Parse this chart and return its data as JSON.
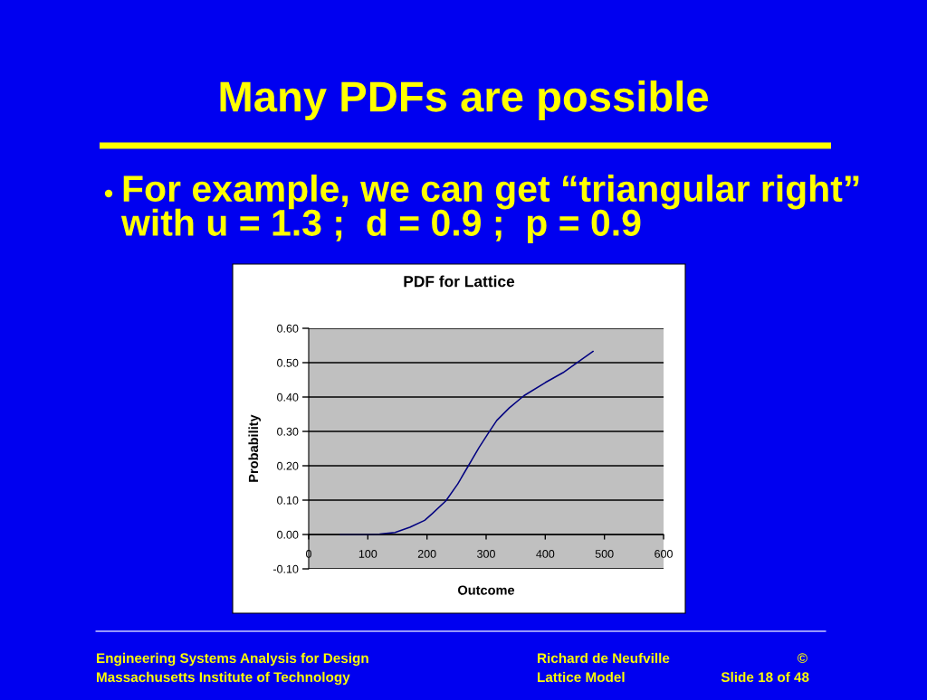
{
  "chart_data": [
    {
      "type": "other",
      "title": "Many PDFs are possible",
      "subtitle": "For example, we can get “triangular right”\nwith u = 1.3 ;  d = 0.9 ;  p = 0.9",
      "annotations": [
        "Engineering Systems Analysis for Design",
        "Massachusetts Institute of Technology",
        "Richard de Neufville",
        "©",
        "Lattice Model",
        "Slide 18 of 48"
      ]
    },
    {
      "type": "line",
      "title": "PDF for Lattice",
      "xlabel": "Outcome",
      "ylabel": "Probability",
      "x": [
        53,
        100,
        120,
        146,
        171,
        196,
        209,
        232,
        252,
        270,
        288,
        306,
        318,
        339,
        364,
        400,
        430,
        453,
        481
      ],
      "series": [
        {
          "color": "#000080",
          "values": [
            0,
            0,
            0.001,
            0.006,
            0.021,
            0.041,
            0.061,
            0.098,
            0.147,
            0.2,
            0.253,
            0.301,
            0.332,
            0.368,
            0.404,
            0.442,
            0.471,
            0.499,
            0.533
          ]
        }
      ],
      "xlim": [
        0,
        600
      ],
      "xticks": [
        0,
        100,
        200,
        300,
        400,
        500,
        600
      ],
      "ylim": [
        -0.1,
        0.6
      ],
      "yticks": [
        {
          "value": -0.1,
          "label": "-0.10"
        },
        {
          "value": 0,
          "label": "0.00"
        },
        {
          "value": 0.1,
          "label": "0.10"
        },
        {
          "value": 0.2,
          "label": "0.20"
        },
        {
          "value": 0.3,
          "label": "0.30"
        },
        {
          "value": 0.4,
          "label": "0.40"
        },
        {
          "value": 0.5,
          "label": "0.50"
        },
        {
          "value": 0.6,
          "label": "0.60"
        }
      ],
      "grid": "y"
    }
  ]
}
